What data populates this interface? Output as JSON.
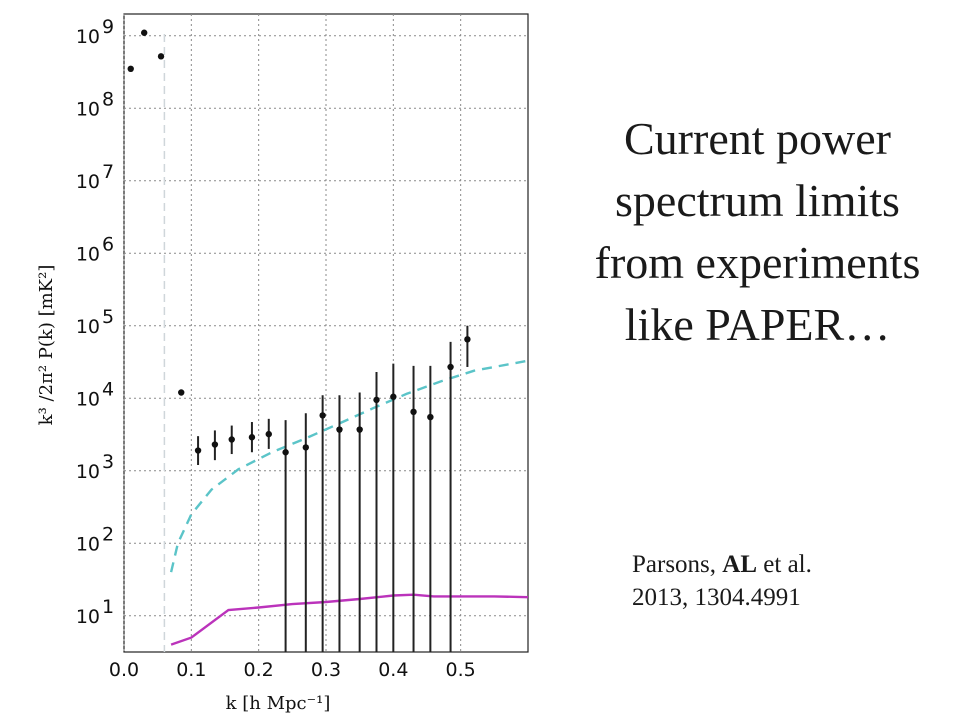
{
  "slide": {
    "title_lines": [
      "Current power",
      "spectrum limits",
      "from experiments",
      "like PAPER…"
    ],
    "citation": {
      "line1_prefix": "Parsons, ",
      "line1_bold": "AL",
      "line1_suffix": " et al.",
      "line2": "2013, 1304.4991"
    }
  },
  "chart_data": {
    "type": "scatter",
    "xlabel": "k [h Mpc⁻¹]",
    "ylabel": "k³ /2π² P(k) [mK²]",
    "xlim": [
      0,
      0.6
    ],
    "ylim_log10": [
      0.5,
      9.3
    ],
    "yscale": "log",
    "grid": true,
    "x_ticks": [
      "0.0",
      "0.1",
      "0.2",
      "0.3",
      "0.4",
      "0.5"
    ],
    "y_tick_exponents": [
      1,
      2,
      3,
      4,
      5,
      6,
      7,
      8,
      9
    ],
    "series": [
      {
        "kind": "points",
        "color": "#111111",
        "points": [
          {
            "k": 0.01,
            "y": 350000000
          },
          {
            "k": 0.03,
            "y": 1100000000
          },
          {
            "k": 0.055,
            "y": 520000000
          },
          {
            "k": 0.085,
            "y": 12000
          },
          {
            "k": 0.11,
            "y": 1900,
            "lo": 1200,
            "hi": 3000
          },
          {
            "k": 0.135,
            "y": 2300,
            "lo": 1400,
            "hi": 3600
          },
          {
            "k": 0.16,
            "y": 2700,
            "lo": 1700,
            "hi": 4200
          },
          {
            "k": 0.19,
            "y": 2900,
            "lo": 1800,
            "hi": 4700
          },
          {
            "k": 0.215,
            "y": 3200,
            "lo": 2000,
            "hi": 5200
          },
          {
            "k": 0.24,
            "y": 1800,
            "lo": 0.1,
            "hi": 5000
          },
          {
            "k": 0.27,
            "y": 2100,
            "lo": 0.1,
            "hi": 6200
          },
          {
            "k": 0.295,
            "y": 5800,
            "lo": 0.1,
            "hi": 11000
          },
          {
            "k": 0.32,
            "y": 3700,
            "lo": 0.1,
            "hi": 11000
          },
          {
            "k": 0.35,
            "y": 3700,
            "lo": 0.1,
            "hi": 12000
          },
          {
            "k": 0.375,
            "y": 9500,
            "lo": 0.1,
            "hi": 23000
          },
          {
            "k": 0.4,
            "y": 10500,
            "lo": 0.1,
            "hi": 30000
          },
          {
            "k": 0.43,
            "y": 6500,
            "lo": 0.1,
            "hi": 28000
          },
          {
            "k": 0.455,
            "y": 5500,
            "lo": 0.1,
            "hi": 28000
          },
          {
            "k": 0.485,
            "y": 27000,
            "lo": 0.1,
            "hi": 60000
          },
          {
            "k": 0.51,
            "y": 65000,
            "lo": 27000,
            "hi": 100000
          }
        ]
      },
      {
        "kind": "line",
        "style": "dashed",
        "color": "#5bc4c8",
        "points": [
          [
            0.07,
            40
          ],
          [
            0.08,
            100
          ],
          [
            0.1,
            250
          ],
          [
            0.13,
            550
          ],
          [
            0.17,
            1050
          ],
          [
            0.22,
            1800
          ],
          [
            0.27,
            2800
          ],
          [
            0.32,
            4500
          ],
          [
            0.37,
            7300
          ],
          [
            0.42,
            11500
          ],
          [
            0.47,
            17000
          ],
          [
            0.52,
            24000
          ],
          [
            0.6,
            33000
          ]
        ]
      },
      {
        "kind": "line",
        "style": "solid",
        "color": "#bb33bb",
        "points": [
          [
            0.07,
            4
          ],
          [
            0.1,
            5
          ],
          [
            0.155,
            12
          ],
          [
            0.2,
            13
          ],
          [
            0.25,
            14.5
          ],
          [
            0.3,
            15.5
          ],
          [
            0.35,
            17
          ],
          [
            0.4,
            19
          ],
          [
            0.43,
            19.5
          ],
          [
            0.46,
            18.5
          ],
          [
            0.5,
            18.5
          ],
          [
            0.55,
            18.5
          ],
          [
            0.6,
            18
          ]
        ]
      }
    ],
    "vertical_guide": {
      "k": 0.06,
      "style": "dashed",
      "color": "#cfd6da"
    }
  }
}
